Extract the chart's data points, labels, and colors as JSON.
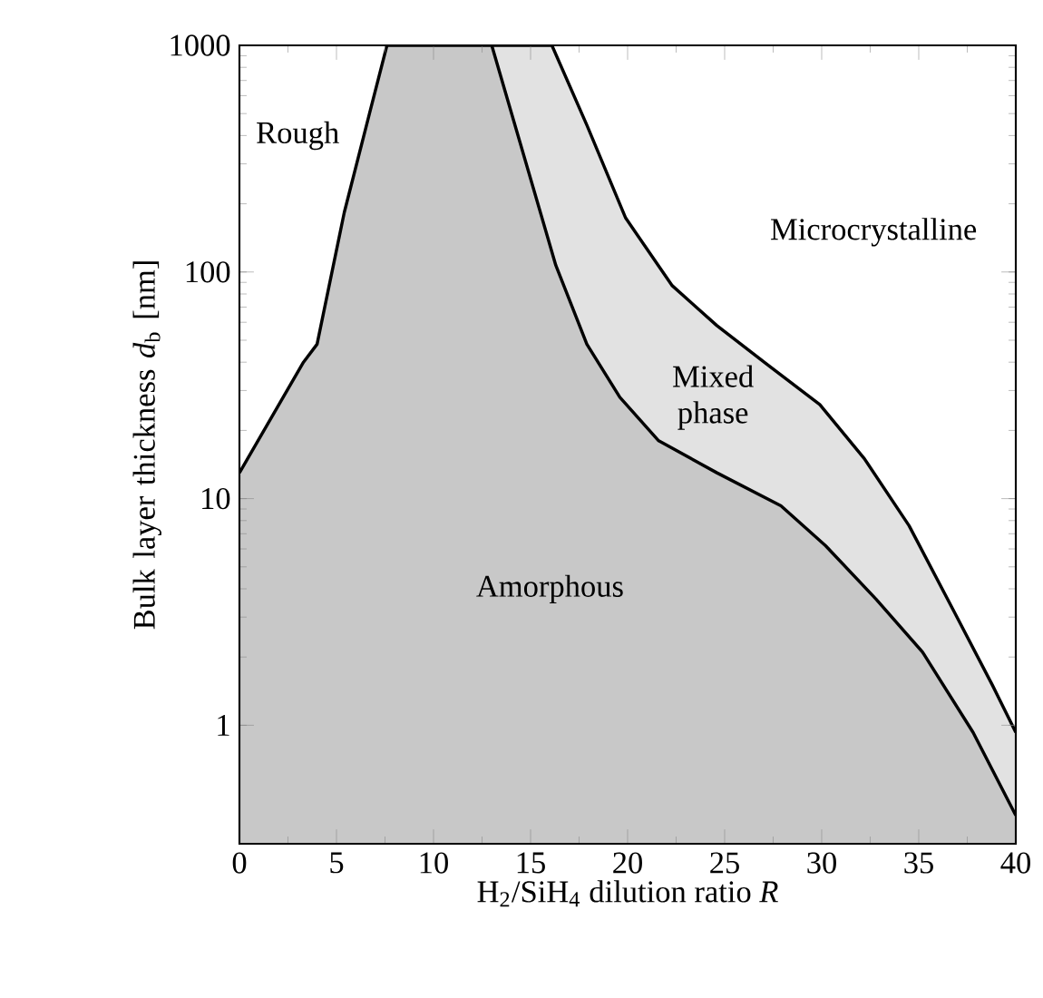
{
  "chart_data": {
    "type": "area",
    "xlabel": "H$_{2}$/SiH$_{4}$ dilution ratio *R*",
    "ylabel": "Bulk layer thickness *d*$_{b}$ [nm]",
    "log": "y",
    "xlim": [
      0,
      40
    ],
    "ylim": [
      0.3,
      1000
    ],
    "xticks": [
      0,
      5,
      10,
      15,
      20,
      25,
      30,
      35,
      40
    ],
    "yticks": [
      1,
      10,
      100,
      1000
    ],
    "grid": false,
    "series": [
      {
        "color": "#e2e2e2",
        "x": [
          13,
          16.1,
          17.9,
          19.9,
          22.3,
          24.6,
          27.2,
          29.9,
          32.2,
          34.5,
          36.8,
          38.8,
          40
        ],
        "values": [
          1000,
          1000,
          445,
          173,
          87,
          58,
          39,
          26,
          15,
          7.6,
          3.2,
          1.5,
          0.93
        ]
      },
      {
        "color": "#c8c8c8",
        "x": [
          0,
          3.3,
          4,
          5.4,
          6.7,
          7.6,
          13,
          14.3,
          16.3,
          17.9,
          19.6,
          21.6,
          24.6,
          27.9,
          30.2,
          32.8,
          35.2,
          37.8,
          40
        ],
        "values": [
          13,
          40,
          48,
          183,
          500,
          1000,
          1000,
          415,
          107,
          48,
          28,
          18,
          13,
          9.3,
          6.2,
          3.6,
          2.1,
          0.93,
          0.4
        ]
      }
    ],
    "annotations": [
      "Rough",
      "Microcrystalline",
      "Mixed phase",
      "Amorphous"
    ]
  }
}
